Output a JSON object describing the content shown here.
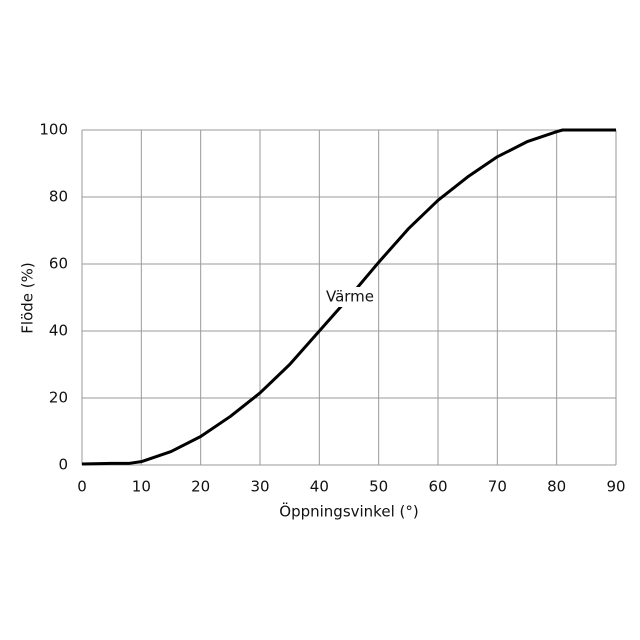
{
  "chart_data": {
    "type": "line",
    "x_label": "Öppningsvinkel (°)",
    "y_label": "Flöde (%)",
    "annotation": "Värme",
    "x": [
      0,
      5,
      8,
      10,
      15,
      20,
      25,
      30,
      35,
      40,
      45,
      50,
      55,
      60,
      65,
      70,
      75,
      80,
      81,
      85,
      90
    ],
    "series": [
      {
        "name": "Värme",
        "color": "#000000",
        "values": [
          0.3,
          0.5,
          0.5,
          1,
          4,
          8.5,
          14.5,
          21.5,
          30,
          40,
          50,
          60.5,
          70.5,
          79,
          86,
          92,
          96.5,
          99.5,
          100,
          100,
          100
        ]
      }
    ],
    "xlim": [
      0,
      90
    ],
    "xticks": [
      0,
      10,
      20,
      30,
      40,
      50,
      60,
      70,
      80,
      90
    ],
    "ylim": [
      0,
      100
    ],
    "yticks": [
      0,
      20,
      40,
      60,
      80,
      100
    ],
    "grid": true
  }
}
